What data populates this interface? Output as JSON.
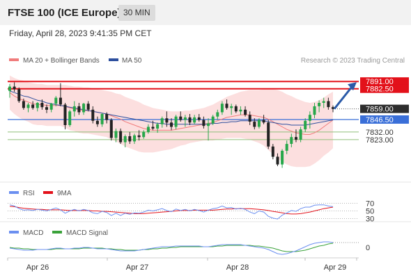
{
  "header": {
    "title": "FTSE 100 (ICE Europe)",
    "timeframe": "30 MIN",
    "datetime": "Friday, April 28, 2023 9:41:35 PM CET"
  },
  "legend": {
    "ma20": "MA 20 + Bollinger Bands",
    "ma50": "MA 50",
    "credit": "Research © 2023 Trading Central",
    "rsi": "RSI",
    "rsi_ma": "9MA",
    "macd": "MACD",
    "macd_signal": "MACD Signal"
  },
  "colors": {
    "ma20": "#f07c7c",
    "ma50": "#2d4f9e",
    "band_fill": "#fbd4d4",
    "resistance": "#e3111a",
    "support": "#8fbf7a",
    "pivot": "#3a6fd8",
    "candle_up": "#27a74a",
    "candle_down": "#222222",
    "rsi": "#6b8ff0",
    "macd_signal": "#3aa23a",
    "arrow": "#2b5aa8",
    "current_tag": "#2d2d2d"
  },
  "chart_data": {
    "type": "candlestick",
    "x_labels": [
      "Apr 26",
      "Apr 27",
      "Apr 28",
      "Apr 29"
    ],
    "ylim": [
      7775,
      7905
    ],
    "levels": [
      {
        "label": "7891.00",
        "value": 7891.0,
        "kind": "resistance",
        "tag": true
      },
      {
        "label": "7882.50",
        "value": 7882.5,
        "kind": "resistance",
        "tag": true
      },
      {
        "label": "7859.00",
        "value": 7859.0,
        "kind": "current",
        "tag": true
      },
      {
        "label": "7846.50",
        "value": 7846.5,
        "kind": "pivot",
        "tag": true
      },
      {
        "label": "7832.00",
        "value": 7832.0,
        "kind": "support",
        "tag": false
      },
      {
        "label": "7823.00",
        "value": 7823.0,
        "kind": "support",
        "tag": false
      }
    ],
    "candles": [
      [
        7880,
        7888,
        7872,
        7885
      ],
      [
        7885,
        7890,
        7879,
        7882
      ],
      [
        7882,
        7884,
        7866,
        7868
      ],
      [
        7868,
        7871,
        7858,
        7860
      ],
      [
        7860,
        7866,
        7855,
        7864
      ],
      [
        7864,
        7868,
        7858,
        7860
      ],
      [
        7860,
        7867,
        7856,
        7866
      ],
      [
        7866,
        7870,
        7858,
        7861
      ],
      [
        7861,
        7864,
        7854,
        7858
      ],
      [
        7858,
        7866,
        7855,
        7865
      ],
      [
        7865,
        7874,
        7862,
        7872
      ],
      [
        7872,
        7889,
        7862,
        7864
      ],
      [
        7864,
        7866,
        7835,
        7840
      ],
      [
        7840,
        7858,
        7838,
        7856
      ],
      [
        7856,
        7868,
        7850,
        7862
      ],
      [
        7862,
        7866,
        7852,
        7855
      ],
      [
        7855,
        7866,
        7852,
        7865
      ],
      [
        7865,
        7868,
        7856,
        7858
      ],
      [
        7858,
        7862,
        7842,
        7845
      ],
      [
        7845,
        7850,
        7838,
        7841
      ],
      [
        7841,
        7854,
        7838,
        7853
      ],
      [
        7853,
        7855,
        7842,
        7846
      ],
      [
        7846,
        7848,
        7822,
        7825
      ],
      [
        7825,
        7836,
        7820,
        7833
      ],
      [
        7833,
        7836,
        7818,
        7820
      ],
      [
        7820,
        7829,
        7814,
        7827
      ],
      [
        7827,
        7832,
        7818,
        7821
      ],
      [
        7821,
        7830,
        7818,
        7828
      ],
      [
        7828,
        7834,
        7822,
        7826
      ],
      [
        7826,
        7834,
        7824,
        7832
      ],
      [
        7832,
        7841,
        7830,
        7838
      ],
      [
        7838,
        7845,
        7834,
        7836
      ],
      [
        7836,
        7843,
        7831,
        7841
      ],
      [
        7841,
        7850,
        7837,
        7848
      ],
      [
        7848,
        7856,
        7838,
        7843
      ],
      [
        7843,
        7848,
        7834,
        7838
      ],
      [
        7838,
        7852,
        7835,
        7850
      ],
      [
        7850,
        7856,
        7844,
        7846
      ],
      [
        7846,
        7852,
        7838,
        7849
      ],
      [
        7849,
        7853,
        7840,
        7843
      ],
      [
        7843,
        7852,
        7841,
        7849
      ],
      [
        7849,
        7853,
        7844,
        7846
      ],
      [
        7846,
        7850,
        7836,
        7839
      ],
      [
        7839,
        7848,
        7822,
        7842
      ],
      [
        7842,
        7852,
        7840,
        7850
      ],
      [
        7850,
        7858,
        7846,
        7855
      ],
      [
        7855,
        7868,
        7852,
        7865
      ],
      [
        7865,
        7870,
        7858,
        7860
      ],
      [
        7860,
        7865,
        7852,
        7862
      ],
      [
        7862,
        7864,
        7854,
        7856
      ],
      [
        7856,
        7862,
        7852,
        7858
      ],
      [
        7858,
        7862,
        7850,
        7852
      ],
      [
        7852,
        7856,
        7840,
        7844
      ],
      [
        7844,
        7848,
        7835,
        7838
      ],
      [
        7838,
        7848,
        7836,
        7846
      ],
      [
        7846,
        7852,
        7841,
        7843
      ],
      [
        7843,
        7846,
        7812,
        7815
      ],
      [
        7815,
        7818,
        7800,
        7803
      ],
      [
        7803,
        7807,
        7792,
        7794
      ],
      [
        7794,
        7812,
        7790,
        7810
      ],
      [
        7810,
        7822,
        7806,
        7818
      ],
      [
        7818,
        7830,
        7814,
        7826
      ],
      [
        7826,
        7835,
        7820,
        7823
      ],
      [
        7823,
        7838,
        7820,
        7835
      ],
      [
        7835,
        7848,
        7832,
        7845
      ],
      [
        7845,
        7856,
        7836,
        7852
      ],
      [
        7852,
        7866,
        7848,
        7862
      ],
      [
        7862,
        7869,
        7855,
        7866
      ],
      [
        7866,
        7872,
        7860,
        7868
      ],
      [
        7868,
        7872,
        7858,
        7861
      ],
      [
        7861,
        7863,
        7855,
        7859
      ]
    ],
    "ma20": [
      7878,
      7874,
      7871,
      7869,
      7867,
      7865,
      7864,
      7864,
      7863,
      7863,
      7863,
      7863,
      7862,
      7860,
      7859,
      7858,
      7857,
      7857,
      7856,
      7855,
      7854,
      7853,
      7851,
      7849,
      7847,
      7844,
      7842,
      7840,
      7838,
      7836,
      7835,
      7834,
      7834,
      7834,
      7834,
      7834,
      7835,
      7836,
      7837,
      7838,
      7839,
      7840,
      7841,
      7842,
      7843,
      7845,
      7847,
      7849,
      7850,
      7851,
      7852,
      7852,
      7852,
      7851,
      7850,
      7849,
      7847,
      7844,
      7841,
      7838,
      7835,
      7833,
      7831,
      7830,
      7829,
      7829,
      7831,
      7834,
      7838,
      7842,
      7846
    ],
    "ma50": [
      7880,
      7878,
      7876,
      7874,
      7873,
      7871,
      7869,
      7868,
      7866,
      7865,
      7864,
      7863,
      7862,
      7861,
      7860,
      7859,
      7858,
      7857,
      7856,
      7855,
      7854,
      7853,
      7852,
      7851,
      7850,
      7849,
      7848,
      7847,
      7846,
      7845,
      7844,
      7843,
      7842,
      7842,
      7841,
      7841,
      7841,
      7841,
      7841,
      7841,
      7841,
      7841,
      7841,
      7841,
      7842,
      7842,
      7843,
      7843,
      7844,
      7844,
      7845,
      7845,
      7845,
      7845,
      7845,
      7845,
      7844,
      7843,
      7842,
      7841,
      7841,
      7840,
      7840,
      7840,
      7840,
      7841,
      7842,
      7843,
      7844,
      7845,
      7846
    ],
    "bb_width": [
      20,
      21,
      22,
      23,
      23,
      24,
      24,
      24,
      24,
      24,
      24,
      24,
      25,
      26,
      26,
      27,
      27,
      27,
      27,
      27,
      27,
      27,
      28,
      28,
      29,
      29,
      29,
      29,
      29,
      28,
      27,
      26,
      25,
      24,
      23,
      22,
      21,
      20,
      20,
      19,
      19,
      19,
      19,
      20,
      21,
      22,
      23,
      24,
      25,
      26,
      27,
      28,
      29,
      30,
      31,
      33,
      36,
      38,
      40,
      41,
      41,
      41,
      40,
      39,
      38,
      37,
      36,
      35,
      34,
      34,
      33
    ],
    "rsi": {
      "levels": [
        70,
        50,
        30
      ],
      "ylim": [
        20,
        80
      ],
      "rsi": [
        66,
        63,
        56,
        52,
        53,
        51,
        54,
        52,
        50,
        54,
        58,
        53,
        44,
        50,
        54,
        50,
        54,
        51,
        45,
        43,
        49,
        46,
        38,
        44,
        38,
        44,
        41,
        45,
        44,
        47,
        52,
        50,
        53,
        56,
        51,
        48,
        55,
        51,
        54,
        50,
        54,
        51,
        47,
        52,
        56,
        58,
        63,
        58,
        59,
        55,
        57,
        54,
        47,
        43,
        50,
        47,
        36,
        31,
        29,
        39,
        45,
        51,
        49,
        56,
        60,
        60,
        65,
        66,
        66,
        63,
        61
      ],
      "ma9": [
        62,
        61,
        59,
        57,
        56,
        55,
        54,
        54,
        53,
        53,
        53,
        53,
        52,
        51,
        51,
        51,
        51,
        51,
        50,
        50,
        49,
        49,
        48,
        47,
        46,
        45,
        44,
        43,
        43,
        43,
        44,
        45,
        46,
        47,
        48,
        49,
        50,
        51,
        51,
        51,
        52,
        52,
        52,
        52,
        52,
        53,
        54,
        55,
        55,
        56,
        56,
        56,
        56,
        55,
        54,
        53,
        51,
        49,
        47,
        45,
        43,
        42,
        42,
        43,
        45,
        47,
        50,
        53,
        56,
        58,
        60
      ]
    },
    "macd": {
      "zero_label": "0",
      "ylim": [
        -14,
        14
      ],
      "macd": [
        -1,
        -2,
        -3,
        -4,
        -4,
        -4,
        -3,
        -3,
        -3,
        -2,
        -1,
        -1,
        -2,
        -2,
        -1,
        -1,
        0,
        0,
        -1,
        -2,
        -2,
        -2,
        -3,
        -4,
        -5,
        -5,
        -5,
        -5,
        -4,
        -3,
        -2,
        -1,
        0,
        1,
        1,
        1,
        2,
        2,
        2,
        2,
        2,
        2,
        1,
        1,
        2,
        3,
        4,
        4,
        4,
        4,
        4,
        3,
        2,
        1,
        0,
        -1,
        -3,
        -6,
        -9,
        -10,
        -9,
        -7,
        -5,
        -2,
        1,
        4,
        6,
        7,
        8,
        8,
        7
      ],
      "signal": [
        0,
        -1,
        -1,
        -2,
        -2,
        -3,
        -3,
        -3,
        -3,
        -3,
        -2,
        -2,
        -2,
        -2,
        -2,
        -2,
        -1,
        -1,
        -1,
        -1,
        -1,
        -2,
        -2,
        -3,
        -3,
        -4,
        -4,
        -4,
        -4,
        -3,
        -3,
        -2,
        -2,
        -1,
        -1,
        0,
        0,
        1,
        1,
        1,
        1,
        1,
        1,
        1,
        1,
        2,
        2,
        3,
        3,
        3,
        3,
        3,
        3,
        2,
        2,
        1,
        0,
        -1,
        -3,
        -5,
        -6,
        -6,
        -6,
        -5,
        -4,
        -2,
        0,
        2,
        3,
        5,
        6
      ]
    }
  }
}
